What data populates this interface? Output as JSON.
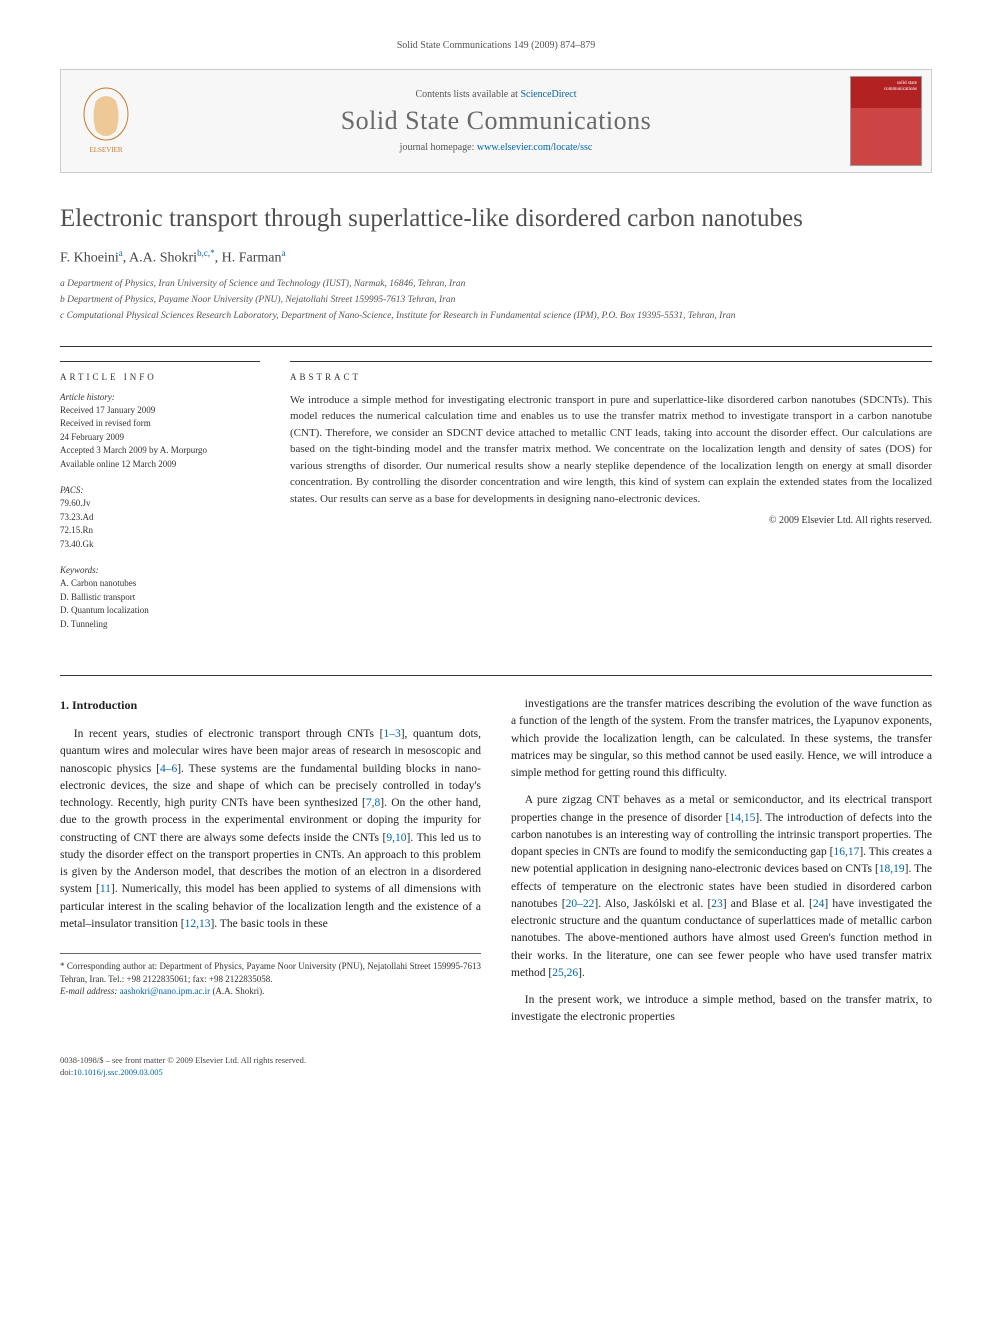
{
  "header_citation": "Solid State Communications 149 (2009) 874–879",
  "banner": {
    "contents_prefix": "Contents lists available at ",
    "contents_link": "ScienceDirect",
    "journal_name": "Solid State Communications",
    "homepage_prefix": "journal homepage: ",
    "homepage_link": "www.elsevier.com/locate/ssc"
  },
  "title": "Electronic transport through superlattice-like disordered carbon nanotubes",
  "authors_html": "F. Khoeini",
  "authors": [
    {
      "name": "F. Khoeini",
      "sup": "a"
    },
    {
      "name": "A.A. Shokri",
      "sup": "b,c,*"
    },
    {
      "name": "H. Farman",
      "sup": "a"
    }
  ],
  "affiliations": [
    "a Department of Physics, Iran University of Science and Technology (IUST), Narmak, 16846, Tehran, Iran",
    "b Department of Physics, Payame Noor University (PNU), Nejatollahi Street 159995-7613 Tehran, Iran",
    "c Computational Physical Sciences Research Laboratory, Department of Nano-Science, Institute for Research in Fundamental science (IPM), P.O. Box 19395-5531, Tehran, Iran"
  ],
  "article_info_head": "ARTICLE INFO",
  "abstract_head": "ABSTRACT",
  "history_label": "Article history:",
  "history": [
    "Received 17 January 2009",
    "Received in revised form",
    "24 February 2009",
    "Accepted 3 March 2009 by A. Morpurgo",
    "Available online 12 March 2009"
  ],
  "pacs_label": "PACS:",
  "pacs": [
    "79.60.Jv",
    "73.23.Ad",
    "72.15.Rn",
    "73.40.Gk"
  ],
  "keywords_label": "Keywords:",
  "keywords": [
    "A. Carbon nanotubes",
    "D. Ballistic transport",
    "D. Quantum localization",
    "D. Tunneling"
  ],
  "abstract": "We introduce a simple method for investigating electronic transport in pure and superlattice-like disordered carbon nanotubes (SDCNTs). This model reduces the numerical calculation time and enables us to use the transfer matrix method to investigate transport in a carbon nanotube (CNT). Therefore, we consider an SDCNT device attached to metallic CNT leads, taking into account the disorder effect. Our calculations are based on the tight-binding model and the transfer matrix method. We concentrate on the localization length and density of sates (DOS) for various strengths of disorder. Our numerical results show a nearly steplike dependence of the localization length on energy at small disorder concentration. By controlling the disorder concentration and wire length, this kind of system can explain the extended states from the localized states. Our results can serve as a base for developments in designing nano-electronic devices.",
  "copyright": "© 2009 Elsevier Ltd. All rights reserved.",
  "intro_title": "1. Introduction",
  "intro_p1": "In recent years, studies of electronic transport through CNTs [1–3], quantum dots, quantum wires and molecular wires have been major areas of research in mesoscopic and nanoscopic physics [4–6]. These systems are the fundamental building blocks in nano-electronic devices, the size and shape of which can be precisely controlled in today's technology. Recently, high purity CNTs have been synthesized [7,8]. On the other hand, due to the growth process in the experimental environment or doping the impurity for constructing of CNT there are always some defects inside the CNTs [9,10]. This led us to study the disorder effect on the transport properties in CNTs. An approach to this problem is given by the Anderson model, that describes the motion of an electron in a disordered system [11]. Numerically, this model has been applied to systems of all dimensions with particular interest in the scaling behavior of the localization length and the existence of a metal–insulator transition [12,13]. The basic tools in these",
  "intro_p2": "investigations are the transfer matrices describing the evolution of the wave function as a function of the length of the system. From the transfer matrices, the Lyapunov exponents, which provide the localization length, can be calculated. In these systems, the transfer matrices may be singular, so this method cannot be used easily. Hence, we will introduce a simple method for getting round this difficulty.",
  "intro_p3": "A pure zigzag CNT behaves as a metal or semiconductor, and its electrical transport properties change in the presence of disorder [14,15]. The introduction of defects into the carbon nanotubes is an interesting way of controlling the intrinsic transport properties. The dopant species in CNTs are found to modify the semiconducting gap [16,17]. This creates a new potential application in designing nano-electronic devices based on CNTs [18,19]. The effects of temperature on the electronic states have been studied in disordered carbon nanotubes [20–22]. Also, Jaskólski et al. [23] and Blase et al. [24] have investigated the electronic structure and the quantum conductance of superlattices made of metallic carbon nanotubes. The above-mentioned authors have almost used Green's function method in their works. In the literature, one can see fewer people who have used transfer matrix method [25,26].",
  "intro_p4": "In the present work, we introduce a simple method, based on the transfer matrix, to investigate the electronic properties",
  "footnote_corr": "* Corresponding author at: Department of Physics, Payame Noor University (PNU), Nejatollahi Street 159995-7613 Tehran, Iran. Tel.: +98 2122835061; fax: +98 2122835058.",
  "footnote_email_label": "E-mail address: ",
  "footnote_email": "aashokri@nano.ipm.ac.ir",
  "footnote_email_suffix": " (A.A. Shokri).",
  "footer1": "0038-1098/$ – see front matter © 2009 Elsevier Ltd. All rights reserved.",
  "footer2_prefix": "doi:",
  "footer2_link": "10.1016/j.ssc.2009.03.005"
}
